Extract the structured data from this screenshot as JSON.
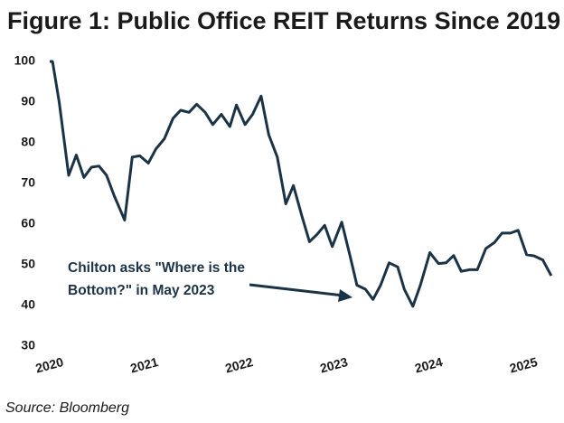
{
  "chart_data": {
    "type": "line",
    "title": "Figure 1: Public Office REIT Returns Since 2019",
    "source": "Source: Bloomberg",
    "annotation": [
      "Chilton asks \"Where is the",
      "Bottom?\" in May 2023"
    ],
    "x": [
      2020.0,
      2020.03,
      2020.1,
      2020.2,
      2020.28,
      2020.36,
      2020.44,
      2020.52,
      2020.6,
      2020.68,
      2020.79,
      2020.87,
      2020.95,
      2021.04,
      2021.12,
      2021.21,
      2021.3,
      2021.38,
      2021.47,
      2021.55,
      2021.64,
      2021.72,
      2021.81,
      2021.9,
      2021.97,
      2022.06,
      2022.14,
      2022.23,
      2022.31,
      2022.4,
      2022.49,
      2022.57,
      2022.66,
      2022.74,
      2022.82,
      2022.9,
      2022.98,
      2023.08,
      2023.17,
      2023.24,
      2023.33,
      2023.41,
      2023.49,
      2023.58,
      2023.67,
      2023.74,
      2023.83,
      2023.91,
      2024.01,
      2024.1,
      2024.18,
      2024.26,
      2024.34,
      2024.43,
      2024.51,
      2024.6,
      2024.69,
      2024.77,
      2024.86,
      2024.94,
      2025.03,
      2025.11,
      2025.2,
      2025.29
    ],
    "series": [
      {
        "name": "Public Office REITs",
        "color": "#1b3346",
        "values": [
          100,
          100,
          90,
          72,
          77,
          71.5,
          74,
          74.3,
          72,
          67,
          61,
          76.5,
          76.8,
          75,
          78.5,
          81,
          86,
          88,
          87.5,
          89.5,
          87.5,
          84.5,
          87,
          84,
          89.3,
          84.5,
          87,
          91.5,
          82,
          76.5,
          65,
          69.5,
          62,
          55.7,
          57.5,
          59.7,
          54.5,
          60.5,
          52,
          45,
          44,
          41.5,
          45,
          50.5,
          49.5,
          44,
          39.8,
          45,
          53,
          50.3,
          50.5,
          52.3,
          48.4,
          48.8,
          48.8,
          54,
          55.5,
          57.8,
          57.8,
          58.5,
          52.5,
          52.2,
          51.2,
          47.3
        ]
      }
    ],
    "xlim": [
      2020,
      2025.31
    ],
    "xticks": [
      2020,
      2021,
      2022,
      2023,
      2024,
      2025
    ],
    "ylim": [
      30,
      100
    ],
    "yticks": [
      30,
      40,
      50,
      60,
      70,
      80,
      90,
      100
    ],
    "grid": false
  }
}
